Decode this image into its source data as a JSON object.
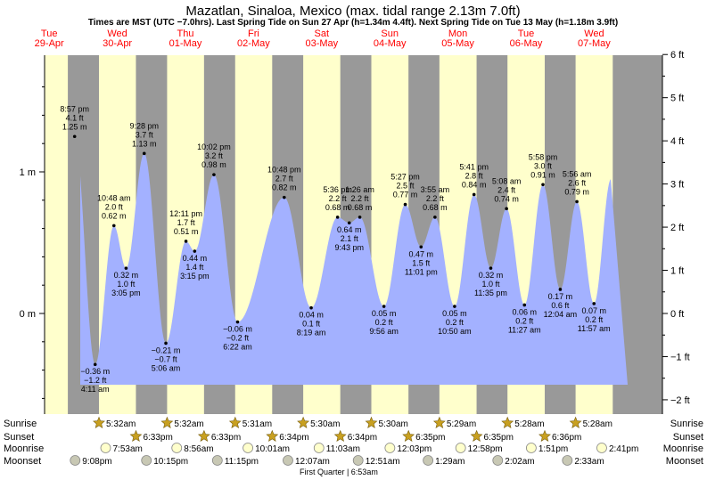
{
  "title": "Mazatlan, Sinaloa, Mexico (max. tidal range 2.13m 7.0ft)",
  "subtitle": "Times are MST (UTC −7.0hrs). Last Spring Tide on Sun 27 Apr (h=1.34m 4.4ft). Next Spring Tide on Tue 13 May (h=1.18m 3.9ft)",
  "colors": {
    "night": "#999999",
    "day": "#ffffcc",
    "tide_fill": "#a3b1ff",
    "day_label": "#ff0000",
    "ink": "#000000",
    "sun_marker": "#c8a020",
    "moonrise_marker": "#ffffcc",
    "moonset_marker": "#c8c8b4"
  },
  "days": [
    {
      "weekday": "Tue",
      "date": "29-Apr"
    },
    {
      "weekday": "Wed",
      "date": "30-Apr"
    },
    {
      "weekday": "Thu",
      "date": "01-May"
    },
    {
      "weekday": "Fri",
      "date": "02-May"
    },
    {
      "weekday": "Sat",
      "date": "03-May"
    },
    {
      "weekday": "Sun",
      "date": "04-May"
    },
    {
      "weekday": "Mon",
      "date": "05-May"
    },
    {
      "weekday": "Tue",
      "date": "06-May"
    },
    {
      "weekday": "Wed",
      "date": "07-May"
    }
  ],
  "axes": {
    "left_ticks": [
      {
        "value": 1,
        "label": "1 m"
      },
      {
        "value": 0,
        "label": "0 m"
      }
    ],
    "right_ticks": [
      {
        "ft": 6,
        "label": "6 ft"
      },
      {
        "ft": 5,
        "label": "5 ft"
      },
      {
        "ft": 4,
        "label": "4 ft"
      },
      {
        "ft": 3,
        "label": "3 ft"
      },
      {
        "ft": 2,
        "label": "2 ft"
      },
      {
        "ft": 1,
        "label": "1 ft"
      },
      {
        "ft": 0,
        "label": "0 ft"
      },
      {
        "ft": -1,
        "label": "−1 ft"
      },
      {
        "ft": -2,
        "label": "−2 ft"
      }
    ]
  },
  "chart_data": {
    "type": "area",
    "title": "Mazatlan, Sinaloa, Mexico (max. tidal range 2.13m 7.0ft)",
    "ylabel_left": "m",
    "ylabel_right": "ft",
    "ylim_m": [
      -0.6,
      1.84
    ],
    "tides": [
      {
        "day": 0,
        "time": "8:57 pm",
        "ft": "4.1 ft",
        "m": 1.25,
        "label": "1.25 m",
        "type": "high"
      },
      {
        "day": 1,
        "time": "4:11 am",
        "ft": "−1.2 ft",
        "m": -0.36,
        "label": "−0.36 m",
        "type": "low"
      },
      {
        "day": 1,
        "time": "10:48 am",
        "ft": "2.0 ft",
        "m": 0.62,
        "label": "0.62 m",
        "type": "high"
      },
      {
        "day": 1,
        "time": "3:05 pm",
        "ft": "1.0 ft",
        "m": 0.32,
        "label": "0.32 m",
        "type": "low"
      },
      {
        "day": 1,
        "time": "9:28 pm",
        "ft": "3.7 ft",
        "m": 1.13,
        "label": "1.13 m",
        "type": "high"
      },
      {
        "day": 2,
        "time": "5:06 am",
        "ft": "−0.7 ft",
        "m": -0.21,
        "label": "−0.21 m",
        "type": "low"
      },
      {
        "day": 2,
        "time": "12:11 pm",
        "ft": "1.7 ft",
        "m": 0.51,
        "label": "0.51 m",
        "type": "high"
      },
      {
        "day": 2,
        "time": "3:15 pm",
        "ft": "1.4 ft",
        "m": 0.44,
        "label": "0.44 m",
        "type": "low"
      },
      {
        "day": 2,
        "time": "10:02 pm",
        "ft": "3.2 ft",
        "m": 0.98,
        "label": "0.98 m",
        "type": "high"
      },
      {
        "day": 3,
        "time": "6:22 am",
        "ft": "−0.2 ft",
        "m": -0.06,
        "label": "−0.06 m",
        "type": "low"
      },
      {
        "day": 3,
        "time": "10:48 pm",
        "ft": "2.7 ft",
        "m": 0.82,
        "label": "0.82 m",
        "type": "high"
      },
      {
        "day": 4,
        "time": "8:19 am",
        "ft": "0.1 ft",
        "m": 0.04,
        "label": "0.04 m",
        "type": "low"
      },
      {
        "day": 4,
        "time": "5:36 pm",
        "ft": "2.2 ft",
        "m": 0.68,
        "label": "0.68 m",
        "type": "high"
      },
      {
        "day": 4,
        "time": "9:43 pm",
        "ft": "2.1 ft",
        "m": 0.64,
        "label": "0.64 m",
        "type": "low"
      },
      {
        "day": 5,
        "time": "1:26 am",
        "ft": "2.2 ft",
        "m": 0.68,
        "label": "0.68 m",
        "type": "high"
      },
      {
        "day": 5,
        "time": "9:56 am",
        "ft": "0.2 ft",
        "m": 0.05,
        "label": "0.05 m",
        "type": "low"
      },
      {
        "day": 5,
        "time": "5:27 pm",
        "ft": "2.5 ft",
        "m": 0.77,
        "label": "0.77 m",
        "type": "high"
      },
      {
        "day": 5,
        "time": "11:01 pm",
        "ft": "1.5 ft",
        "m": 0.47,
        "label": "0.47 m",
        "type": "low"
      },
      {
        "day": 6,
        "time": "3:55 am",
        "ft": "2.2 ft",
        "m": 0.68,
        "label": "0.68 m",
        "type": "high"
      },
      {
        "day": 6,
        "time": "10:50 am",
        "ft": "0.2 ft",
        "m": 0.05,
        "label": "0.05 m",
        "type": "low"
      },
      {
        "day": 6,
        "time": "5:41 pm",
        "ft": "2.8 ft",
        "m": 0.84,
        "label": "0.84 m",
        "type": "high"
      },
      {
        "day": 6,
        "time": "11:35 pm",
        "ft": "1.0 ft",
        "m": 0.32,
        "label": "0.32 m",
        "type": "low"
      },
      {
        "day": 7,
        "time": "5:08 am",
        "ft": "2.4 ft",
        "m": 0.74,
        "label": "0.74 m",
        "type": "high"
      },
      {
        "day": 7,
        "time": "11:27 am",
        "ft": "0.2 ft",
        "m": 0.06,
        "label": "0.06 m",
        "type": "low"
      },
      {
        "day": 7,
        "time": "5:58 pm",
        "ft": "3.0 ft",
        "m": 0.91,
        "label": "0.91 m",
        "type": "high"
      },
      {
        "day": 8,
        "time": "12:04 am",
        "ft": "0.6 ft",
        "m": 0.17,
        "label": "0.17 m",
        "type": "low"
      },
      {
        "day": 8,
        "time": "5:56 am",
        "ft": "2.6 ft",
        "m": 0.79,
        "label": "0.79 m",
        "type": "high"
      },
      {
        "day": 8,
        "time": "11:57 am",
        "ft": "0.2 ft",
        "m": 0.07,
        "label": "0.07 m",
        "type": "low"
      }
    ]
  },
  "bottom": {
    "row_labels": {
      "sunrise": "Sunrise",
      "sunset": "Sunset",
      "moonrise": "Moonrise",
      "moonset": "Moonset"
    },
    "sunrise": [
      {
        "day": 1,
        "time": "5:32am"
      },
      {
        "day": 2,
        "time": "5:32am"
      },
      {
        "day": 3,
        "time": "5:31am"
      },
      {
        "day": 4,
        "time": "5:30am"
      },
      {
        "day": 5,
        "time": "5:30am"
      },
      {
        "day": 6,
        "time": "5:29am"
      },
      {
        "day": 7,
        "time": "5:28am"
      },
      {
        "day": 8,
        "time": "5:28am"
      }
    ],
    "sunset": [
      {
        "day": 1,
        "time": "6:33pm"
      },
      {
        "day": 2,
        "time": "6:33pm"
      },
      {
        "day": 3,
        "time": "6:34pm"
      },
      {
        "day": 4,
        "time": "6:34pm"
      },
      {
        "day": 5,
        "time": "6:35pm"
      },
      {
        "day": 6,
        "time": "6:35pm"
      },
      {
        "day": 7,
        "time": "6:36pm"
      }
    ],
    "moonrise": [
      {
        "day": 1,
        "time": "7:53am"
      },
      {
        "day": 2,
        "time": "8:56am"
      },
      {
        "day": 3,
        "time": "10:01am"
      },
      {
        "day": 4,
        "time": "11:03am"
      },
      {
        "day": 5,
        "time": "12:03pm"
      },
      {
        "day": 6,
        "time": "12:58pm"
      },
      {
        "day": 7,
        "time": "1:51pm"
      },
      {
        "day": 8,
        "time": "2:41pm"
      }
    ],
    "moonset": [
      {
        "day": 0,
        "time": "9:08pm"
      },
      {
        "day": 1,
        "time": "10:15pm"
      },
      {
        "day": 2,
        "time": "11:15pm"
      },
      {
        "day": 4,
        "time": "12:07am"
      },
      {
        "day": 5,
        "time": "12:51am"
      },
      {
        "day": 6,
        "time": "1:29am"
      },
      {
        "day": 7,
        "time": "2:02am"
      },
      {
        "day": 8,
        "time": "2:33am"
      }
    ],
    "moon_phase": "First Quarter | 6:53am"
  }
}
